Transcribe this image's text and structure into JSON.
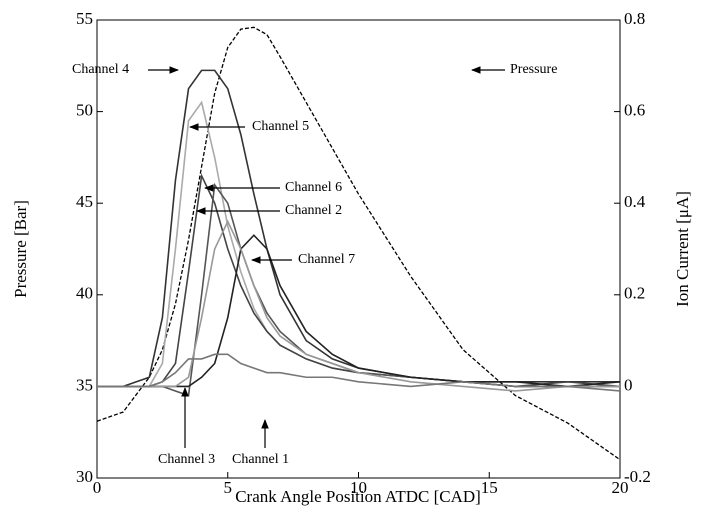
{
  "chart_data": {
    "type": "line",
    "x_label": "Crank Angle Position ATDC [CAD]",
    "y_label": "Pressure [Bar]",
    "y2_label": "Ion Current [μA]",
    "x": [
      0,
      1,
      2,
      2.5,
      3,
      3.5,
      4,
      4.5,
      5,
      5.5,
      6,
      6.5,
      7,
      8,
      9,
      10,
      12,
      14,
      16,
      18,
      20
    ],
    "xlim": [
      0,
      20
    ],
    "xticks": [
      0,
      5,
      10,
      15,
      20
    ],
    "ylim": [
      30,
      55
    ],
    "yticks": [
      30,
      35,
      40,
      45,
      50,
      55
    ],
    "y2lim": [
      -0.2,
      0.8
    ],
    "y2ticks": [
      -0.2,
      0,
      0.2,
      0.4,
      0.6,
      0.8
    ],
    "series": [
      {
        "name": "Pressure",
        "color": "#000000",
        "dashed": true,
        "values": [
          33.1,
          33.6,
          35.5,
          37,
          39.5,
          43,
          47,
          51,
          53.5,
          54.5,
          54.6,
          54.2,
          53,
          50.5,
          48,
          45.5,
          41,
          37,
          34.5,
          33,
          31
        ]
      },
      {
        "name": "Channel 4",
        "color": "#333333",
        "axis": "y2",
        "values": [
          0,
          0,
          0.02,
          0.15,
          0.45,
          0.65,
          0.69,
          0.69,
          0.65,
          0.55,
          0.42,
          0.3,
          0.2,
          0.1,
          0.06,
          0.04,
          0.02,
          0.01,
          0.01,
          0.01,
          0.01
        ]
      },
      {
        "name": "Channel 5",
        "color": "#aaaaaa",
        "axis": "y2",
        "values": [
          0,
          0,
          0,
          0.05,
          0.3,
          0.58,
          0.62,
          0.5,
          0.35,
          0.25,
          0.17,
          0.12,
          0.09,
          0.06,
          0.04,
          0.03,
          0.02,
          0.01,
          0,
          0,
          0
        ]
      },
      {
        "name": "Channel 6",
        "color": "#444444",
        "axis": "y2",
        "values": [
          0,
          0,
          0,
          0.01,
          0.05,
          0.25,
          0.46,
          0.4,
          0.3,
          0.22,
          0.16,
          0.12,
          0.09,
          0.06,
          0.04,
          0.03,
          0.02,
          0.01,
          0,
          0.01,
          0
        ]
      },
      {
        "name": "Channel 2",
        "color": "#555555",
        "axis": "y2",
        "values": [
          0,
          0,
          0,
          0,
          -0.01,
          -0.02,
          0.2,
          0.44,
          0.4,
          0.3,
          0.22,
          0.16,
          0.12,
          0.07,
          0.05,
          0.03,
          0.02,
          0.01,
          0,
          0,
          0
        ]
      },
      {
        "name": "Channel 7",
        "color": "#222222",
        "axis": "y2",
        "values": [
          0,
          0,
          0,
          0,
          0,
          0,
          0.02,
          0.05,
          0.15,
          0.3,
          0.33,
          0.3,
          0.22,
          0.12,
          0.07,
          0.04,
          0.02,
          0.01,
          0.01,
          0,
          0.01
        ]
      },
      {
        "name": "Channel 3",
        "color": "#999999",
        "axis": "y2",
        "values": [
          0,
          0,
          0,
          0,
          0,
          0.02,
          0.15,
          0.3,
          0.36,
          0.3,
          0.22,
          0.15,
          0.11,
          0.07,
          0.05,
          0.03,
          0.01,
          0,
          -0.01,
          0,
          0
        ]
      },
      {
        "name": "Channel 1",
        "color": "#777777",
        "axis": "y2",
        "values": [
          0,
          0,
          0,
          0.01,
          0.03,
          0.06,
          0.06,
          0.07,
          0.07,
          0.05,
          0.04,
          0.03,
          0.03,
          0.02,
          0.02,
          0.01,
          0,
          0.01,
          0,
          0,
          -0.01
        ]
      }
    ]
  }
}
